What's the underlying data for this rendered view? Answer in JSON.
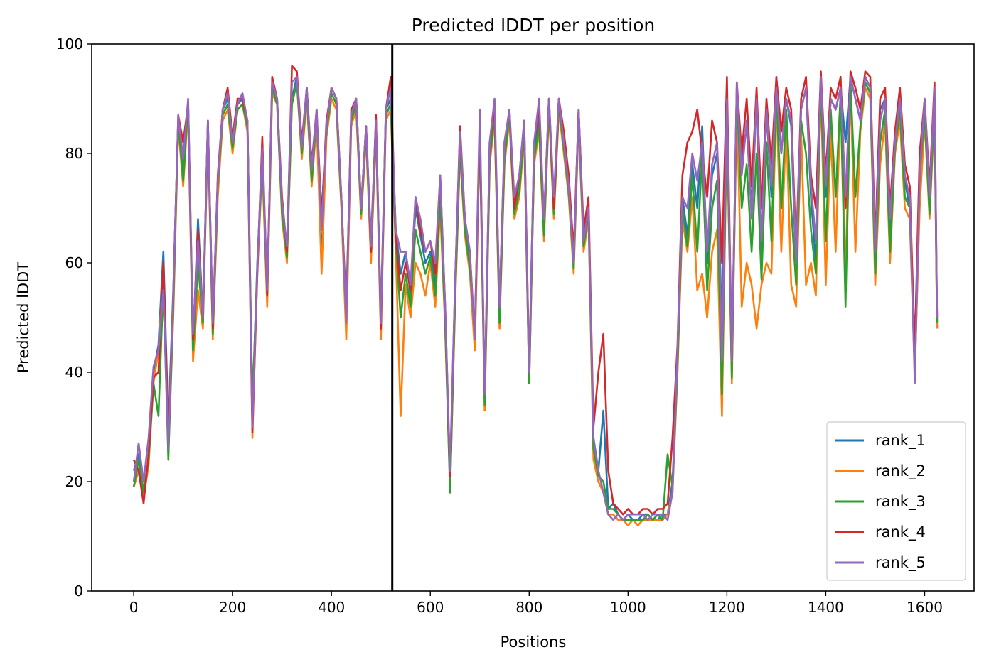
{
  "chart_data": {
    "type": "line",
    "title": "Predicted lDDT per position",
    "xlabel": "Positions",
    "ylabel": "Predicted lDDT",
    "xlim": [
      -85,
      1700
    ],
    "ylim": [
      0,
      100
    ],
    "xticks": [
      0,
      200,
      400,
      600,
      800,
      1000,
      1200,
      1400,
      1600
    ],
    "yticks": [
      0,
      20,
      40,
      60,
      80,
      100
    ],
    "grid": false,
    "legend_position": "lower-right",
    "vline": 523,
    "x": [
      0,
      10,
      20,
      30,
      40,
      50,
      60,
      70,
      80,
      90,
      100,
      110,
      120,
      130,
      140,
      150,
      160,
      170,
      180,
      190,
      200,
      210,
      220,
      230,
      240,
      250,
      260,
      270,
      280,
      290,
      300,
      310,
      320,
      330,
      340,
      350,
      360,
      370,
      380,
      390,
      400,
      410,
      420,
      430,
      440,
      450,
      460,
      470,
      480,
      490,
      500,
      510,
      520,
      530,
      540,
      550,
      560,
      570,
      580,
      590,
      600,
      610,
      620,
      630,
      640,
      650,
      660,
      670,
      680,
      690,
      700,
      710,
      720,
      730,
      740,
      750,
      760,
      770,
      780,
      790,
      800,
      810,
      820,
      830,
      840,
      850,
      860,
      870,
      880,
      890,
      900,
      910,
      920,
      930,
      940,
      950,
      960,
      970,
      980,
      990,
      1000,
      1010,
      1020,
      1030,
      1040,
      1050,
      1060,
      1070,
      1080,
      1090,
      1100,
      1110,
      1120,
      1130,
      1140,
      1150,
      1160,
      1170,
      1180,
      1190,
      1200,
      1210,
      1220,
      1230,
      1240,
      1250,
      1260,
      1270,
      1280,
      1290,
      1300,
      1310,
      1320,
      1330,
      1340,
      1350,
      1360,
      1370,
      1380,
      1390,
      1400,
      1410,
      1420,
      1430,
      1440,
      1450,
      1460,
      1470,
      1480,
      1490,
      1500,
      1510,
      1520,
      1530,
      1540,
      1550,
      1560,
      1570,
      1580,
      1590,
      1600,
      1610,
      1620,
      1625
    ],
    "series": [
      {
        "name": "rank_1",
        "color": "#1f77b4",
        "values": [
          22,
          25,
          18,
          24,
          40,
          45,
          62,
          30,
          55,
          86,
          76,
          89,
          45,
          68,
          50,
          86,
          48,
          75,
          88,
          90,
          82,
          89,
          90,
          86,
          33,
          60,
          80,
          55,
          92,
          90,
          70,
          62,
          90,
          94,
          80,
          92,
          76,
          88,
          60,
          85,
          92,
          90,
          72,
          48,
          87,
          90,
          70,
          85,
          64,
          86,
          50,
          88,
          90,
          66,
          58,
          62,
          54,
          70,
          65,
          60,
          62,
          56,
          74,
          50,
          20,
          55,
          82,
          68,
          60,
          45,
          85,
          35,
          80,
          88,
          50,
          80,
          88,
          70,
          75,
          85,
          38,
          80,
          86,
          66,
          90,
          70,
          90,
          82,
          75,
          60,
          88,
          64,
          70,
          28,
          22,
          33,
          15,
          16,
          14,
          13,
          14,
          13,
          13,
          14,
          14,
          13,
          13,
          14,
          14,
          20,
          42,
          72,
          65,
          78,
          70,
          85,
          60,
          76,
          80,
          48,
          88,
          40,
          92,
          78,
          85,
          70,
          90,
          60,
          88,
          72,
          92,
          80,
          90,
          85,
          58,
          88,
          92,
          72,
          60,
          94,
          72,
          90,
          88,
          92,
          82,
          94,
          90,
          86,
          94,
          92,
          60,
          88,
          90,
          66,
          82,
          90,
          75,
          70,
          40,
          72,
          88,
          70,
          90,
          48
        ]
      },
      {
        "name": "rank_2",
        "color": "#ff7f0e",
        "values": [
          19,
          22,
          17,
          23,
          38,
          44,
          58,
          25,
          50,
          85,
          74,
          88,
          42,
          55,
          48,
          84,
          46,
          72,
          86,
          88,
          80,
          88,
          89,
          84,
          28,
          58,
          78,
          52,
          91,
          89,
          68,
          60,
          89,
          93,
          79,
          90,
          74,
          86,
          58,
          83,
          90,
          88,
          70,
          46,
          85,
          88,
          68,
          83,
          60,
          84,
          46,
          86,
          88,
          62,
          32,
          56,
          50,
          60,
          58,
          54,
          60,
          52,
          70,
          48,
          19,
          52,
          80,
          65,
          58,
          44,
          83,
          33,
          78,
          86,
          48,
          78,
          86,
          68,
          72,
          83,
          38,
          78,
          84,
          64,
          88,
          68,
          88,
          80,
          72,
          58,
          86,
          62,
          68,
          24,
          20,
          18,
          14,
          14,
          13,
          13,
          12,
          13,
          12,
          13,
          13,
          13,
          13,
          13,
          14,
          18,
          40,
          68,
          62,
          72,
          55,
          58,
          50,
          62,
          66,
          32,
          86,
          38,
          90,
          52,
          60,
          56,
          48,
          56,
          60,
          58,
          90,
          62,
          86,
          56,
          52,
          84,
          56,
          60,
          54,
          92,
          56,
          84,
          62,
          90,
          58,
          92,
          62,
          84,
          92,
          90,
          56,
          78,
          86,
          60,
          80,
          86,
          70,
          68,
          40,
          70,
          86,
          68,
          88,
          48
        ]
      },
      {
        "name": "rank_3",
        "color": "#2ca02c",
        "values": [
          19,
          24,
          18,
          24,
          38,
          32,
          56,
          24,
          52,
          86,
          75,
          89,
          44,
          60,
          49,
          85,
          47,
          74,
          87,
          89,
          81,
          88,
          89,
          85,
          34,
          59,
          79,
          54,
          92,
          89,
          69,
          61,
          89,
          93,
          80,
          91,
          75,
          87,
          69,
          84,
          91,
          89,
          71,
          52,
          86,
          89,
          69,
          84,
          62,
          85,
          48,
          87,
          89,
          64,
          50,
          58,
          52,
          66,
          62,
          58,
          61,
          54,
          72,
          49,
          18,
          53,
          81,
          66,
          59,
          48,
          84,
          34,
          79,
          87,
          49,
          79,
          87,
          69,
          73,
          84,
          38,
          79,
          85,
          65,
          89,
          69,
          89,
          81,
          73,
          59,
          87,
          63,
          69,
          26,
          21,
          20,
          15,
          15,
          14,
          13,
          13,
          13,
          13,
          13,
          14,
          13,
          14,
          13,
          25,
          19,
          41,
          70,
          63,
          76,
          62,
          80,
          55,
          70,
          75,
          36,
          87,
          39,
          91,
          70,
          78,
          62,
          80,
          57,
          82,
          64,
          91,
          70,
          88,
          70,
          56,
          86,
          80,
          66,
          58,
          93,
          64,
          88,
          72,
          91,
          52,
          93,
          72,
          85,
          93,
          91,
          58,
          82,
          88,
          62,
          81,
          88,
          72,
          70,
          41,
          76,
          87,
          69,
          89,
          49
        ]
      },
      {
        "name": "rank_4",
        "color": "#d62728",
        "values": [
          24,
          22,
          16,
          25,
          39,
          40,
          60,
          28,
          54,
          87,
          82,
          89,
          46,
          66,
          50,
          86,
          48,
          76,
          88,
          92,
          83,
          90,
          90,
          86,
          29,
          58,
          83,
          54,
          94,
          90,
          72,
          62,
          96,
          95,
          82,
          92,
          78,
          88,
          68,
          86,
          92,
          90,
          72,
          50,
          88,
          90,
          70,
          85,
          62,
          87,
          48,
          88,
          94,
          65,
          55,
          60,
          55,
          72,
          66,
          62,
          64,
          58,
          76,
          52,
          21,
          56,
          85,
          68,
          62,
          46,
          86,
          36,
          82,
          88,
          52,
          82,
          88,
          70,
          76,
          86,
          40,
          82,
          88,
          68,
          90,
          70,
          90,
          84,
          76,
          62,
          88,
          66,
          72,
          30,
          40,
          47,
          22,
          16,
          15,
          14,
          15,
          14,
          14,
          15,
          15,
          14,
          15,
          15,
          16,
          28,
          45,
          76,
          82,
          84,
          88,
          80,
          72,
          86,
          82,
          60,
          94,
          42,
          93,
          80,
          90,
          74,
          92,
          70,
          90,
          78,
          94,
          84,
          92,
          88,
          62,
          90,
          94,
          76,
          70,
          95,
          76,
          92,
          90,
          94,
          70,
          95,
          92,
          88,
          95,
          94,
          64,
          90,
          92,
          70,
          84,
          92,
          78,
          74,
          44,
          80,
          90,
          74,
          93,
          50
        ]
      },
      {
        "name": "rank_5",
        "color": "#9467bd",
        "values": [
          20,
          27,
          20,
          28,
          41,
          44,
          55,
          26,
          54,
          87,
          79,
          90,
          47,
          64,
          50,
          86,
          49,
          75,
          88,
          91,
          82,
          89,
          91,
          86,
          30,
          59,
          81,
          55,
          93,
          90,
          71,
          63,
          93,
          94,
          81,
          92,
          77,
          88,
          66,
          85,
          92,
          90,
          72,
          49,
          87,
          90,
          70,
          85,
          63,
          86,
          49,
          88,
          92,
          66,
          62,
          62,
          56,
          72,
          68,
          62,
          64,
          60,
          76,
          52,
          22,
          56,
          84,
          68,
          62,
          46,
          88,
          36,
          82,
          90,
          52,
          82,
          88,
          72,
          76,
          86,
          40,
          82,
          90,
          68,
          90,
          72,
          90,
          82,
          74,
          60,
          88,
          64,
          70,
          28,
          22,
          18,
          14,
          13,
          14,
          13,
          14,
          14,
          14,
          14,
          13,
          14,
          14,
          14,
          13,
          18,
          44,
          72,
          70,
          80,
          75,
          82,
          62,
          78,
          82,
          42,
          90,
          42,
          93,
          76,
          86,
          68,
          90,
          64,
          88,
          74,
          92,
          80,
          90,
          86,
          60,
          88,
          92,
          74,
          64,
          94,
          74,
          90,
          88,
          92,
          72,
          94,
          90,
          86,
          94,
          92,
          62,
          86,
          90,
          68,
          82,
          90,
          76,
          72,
          38,
          76,
          90,
          72,
          92,
          50
        ]
      }
    ]
  }
}
